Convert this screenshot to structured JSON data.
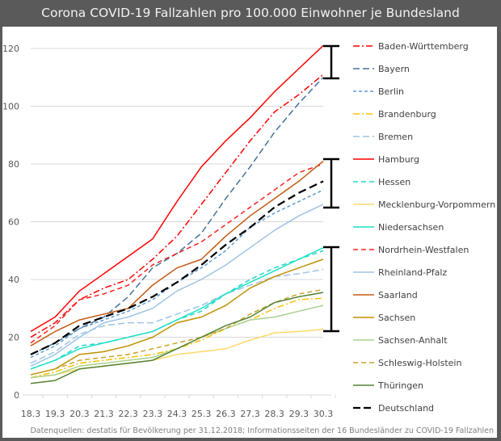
{
  "chart_data": {
    "type": "line",
    "title": "Corona COVID-19 Fallzahlen pro 100.000 Einwohner je Bundesland",
    "xlabel": "",
    "ylabel": "",
    "ylim": [
      0,
      125
    ],
    "yticks": [
      0,
      20,
      40,
      60,
      80,
      100,
      120
    ],
    "grid": true,
    "legend_position": "right",
    "categories": [
      "18.3",
      "19.3",
      "20.3",
      "21.3",
      "22.3",
      "23.3",
      "24.3",
      "25.3",
      "26.3",
      "27.3",
      "28.3",
      "29.3",
      "30.3"
    ],
    "series": [
      {
        "name": "Baden-Württemberg",
        "color": "#ff0000",
        "dash": "dashdot",
        "values": [
          20,
          25,
          33,
          37,
          40,
          47,
          55,
          66,
          77,
          88,
          98,
          104,
          111
        ]
      },
      {
        "name": "Bayern",
        "color": "#44739c",
        "dash": "longdash",
        "values": [
          14,
          18,
          23,
          27,
          34,
          44,
          49,
          56,
          68,
          79,
          91,
          101,
          110
        ]
      },
      {
        "name": "Berlin",
        "color": "#5b9bd5",
        "dash": "shortdash",
        "values": [
          13,
          17,
          23,
          26,
          29,
          33,
          39,
          44,
          50,
          58,
          63,
          67,
          71
        ]
      },
      {
        "name": "Brandenburg",
        "color": "#ffc000",
        "dash": "dashdot",
        "values": [
          6,
          8,
          11,
          12,
          13,
          14,
          16,
          19,
          23,
          26,
          30,
          33,
          33.5
        ]
      },
      {
        "name": "Bremen",
        "color": "#9dc3e6",
        "dash": "longdash",
        "values": [
          11,
          15,
          21,
          24,
          25,
          25,
          28,
          31,
          35,
          38,
          41,
          42,
          43.5
        ]
      },
      {
        "name": "Hamburg",
        "color": "#ff0000",
        "dash": "solid",
        "values": [
          22,
          27,
          36,
          42,
          48,
          54,
          67,
          79,
          88,
          96,
          105,
          113,
          121
        ]
      },
      {
        "name": "Hessen",
        "color": "#1fd6c4",
        "dash": "dash",
        "values": [
          9,
          12,
          17,
          18,
          20,
          22,
          26,
          29,
          35,
          40,
          44,
          47,
          50
        ]
      },
      {
        "name": "Mecklenburg-Vorpommern",
        "color": "#ffd966",
        "dash": "solid",
        "values": [
          6,
          7,
          9,
          10,
          11,
          12,
          14,
          15,
          16,
          19,
          21.5,
          22,
          22.7
        ]
      },
      {
        "name": "Niedersachsen",
        "color": "#1fe0c8",
        "dash": "solid",
        "values": [
          9,
          12,
          16,
          18,
          20,
          22,
          26,
          30,
          35,
          39,
          43,
          47,
          51
        ]
      },
      {
        "name": "Nordrhein-Westfalen",
        "color": "#ff2020",
        "dash": "dash",
        "values": [
          18,
          24,
          33,
          35,
          38,
          45,
          49,
          53,
          59,
          65,
          71,
          77,
          80
        ]
      },
      {
        "name": "Rheinland-Pfalz",
        "color": "#9dc3e6",
        "dash": "solid",
        "values": [
          10,
          14,
          20,
          25,
          27,
          30,
          36,
          40,
          45,
          51,
          57,
          62,
          66
        ]
      },
      {
        "name": "Saarland",
        "color": "#c55a11",
        "dash": "solid",
        "values": [
          17,
          22,
          26,
          28,
          30,
          38,
          44,
          47,
          55,
          62,
          68,
          74,
          81
        ]
      },
      {
        "name": "Sachsen",
        "color": "#bf9000",
        "dash": "solid",
        "values": [
          7,
          9,
          14,
          15,
          17,
          20,
          25,
          27,
          31,
          37,
          41,
          44,
          47
        ]
      },
      {
        "name": "Sachsen-Anhalt",
        "color": "#a9d18e",
        "dash": "solid",
        "values": [
          6,
          7,
          10,
          11,
          12,
          13,
          16,
          20,
          23,
          26,
          27,
          29,
          31
        ]
      },
      {
        "name": "Schleswig-Holstein",
        "color": "#c9a227",
        "dash": "dash",
        "values": [
          7,
          9,
          12,
          13,
          14,
          16,
          18,
          20,
          23,
          28,
          32,
          35,
          36.5
        ]
      },
      {
        "name": "Thüringen",
        "color": "#548235",
        "dash": "solid",
        "values": [
          4,
          5,
          9,
          10,
          11,
          12,
          16,
          20,
          24,
          27,
          32,
          34,
          35.5
        ]
      },
      {
        "name": "Deutschland",
        "color": "#000000",
        "dash": "heavydash",
        "values": [
          14,
          18,
          24,
          27,
          30,
          34,
          39,
          45,
          52,
          58,
          65,
          70,
          74
        ]
      }
    ],
    "annotations": [
      "bracket-top-group",
      "bracket-middle-group",
      "bracket-bottom-group"
    ],
    "source": "Datenquellen: destatis für Bevölkerung per 31.12.2018; Informationsseiten der 16 Bundesländer zu COVID-19 Fallzahlen"
  }
}
